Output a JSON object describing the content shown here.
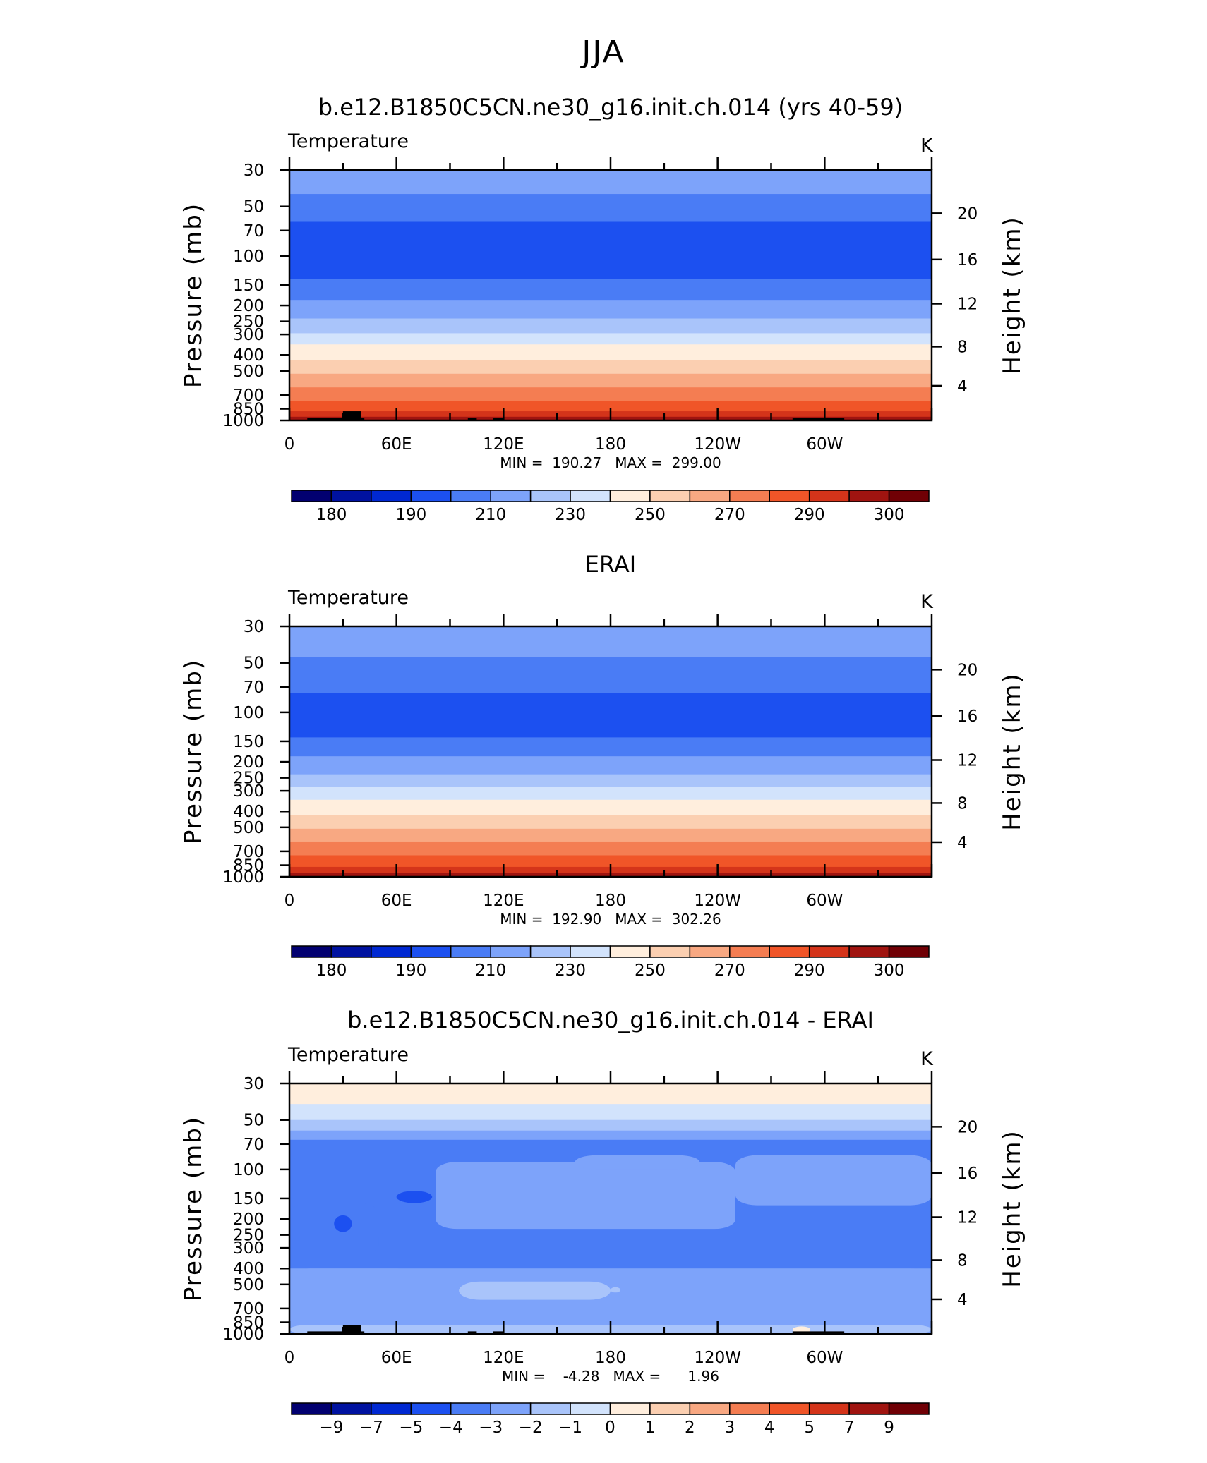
{
  "figure_title": "JJA",
  "chart_data": [
    {
      "type": "heatmap",
      "title": "b.e12.B1850C5CN.ne30_g16.init.ch.014 (yrs 40-59)",
      "left_label": "Temperature",
      "right_label": "K",
      "xlabel": "",
      "ylabel": "Pressure  (mb)",
      "ylabel_right": "Height  (km)",
      "x_ticks": [
        "0",
        "60E",
        "120E",
        "180",
        "120W",
        "60W"
      ],
      "y_ticks": [
        "30",
        "50",
        "70",
        "100",
        "150",
        "200",
        "250",
        "300",
        "400",
        "500",
        "700",
        "850",
        "1000"
      ],
      "y_right_ticks": [
        "20",
        "16",
        "12",
        "8",
        "4"
      ],
      "stats": "MIN =  190.27   MAX =  299.00",
      "levels": [
        175,
        180,
        185,
        190,
        200,
        210,
        220,
        230,
        240,
        250,
        260,
        270,
        280,
        290,
        295,
        300
      ],
      "colorbar_labels": [
        "180",
        "190",
        "210",
        "230",
        "250",
        "270",
        "290",
        "300"
      ],
      "bands": [
        {
          "top_p": 30,
          "bottom_p": 42,
          "value": 215
        },
        {
          "top_p": 42,
          "bottom_p": 62,
          "value": 205
        },
        {
          "top_p": 62,
          "bottom_p": 138,
          "value": 195
        },
        {
          "top_p": 138,
          "bottom_p": 185,
          "value": 205
        },
        {
          "top_p": 185,
          "bottom_p": 240,
          "value": 215
        },
        {
          "top_p": 240,
          "bottom_p": 295,
          "value": 225
        },
        {
          "top_p": 295,
          "bottom_p": 345,
          "value": 235
        },
        {
          "top_p": 345,
          "bottom_p": 430,
          "value": 245
        },
        {
          "top_p": 430,
          "bottom_p": 520,
          "value": 255
        },
        {
          "top_p": 520,
          "bottom_p": 630,
          "value": 265
        },
        {
          "top_p": 630,
          "bottom_p": 760,
          "value": 275
        },
        {
          "top_p": 760,
          "bottom_p": 880,
          "value": 285
        },
        {
          "top_p": 880,
          "bottom_p": 950,
          "value": 292
        },
        {
          "top_p": 950,
          "bottom_p": 1000,
          "value": 297
        }
      ],
      "terrain": [
        {
          "lon_start": 10,
          "lon_end": 30,
          "top_p": 965
        },
        {
          "lon_start": 30,
          "lon_end": 40,
          "top_p": 880
        },
        {
          "lon_start": 40,
          "lon_end": 42,
          "top_p": 965
        },
        {
          "lon_start": 100,
          "lon_end": 105,
          "top_p": 965
        },
        {
          "lon_start": 114,
          "lon_end": 120,
          "top_p": 965
        },
        {
          "lon_start": 282,
          "lon_end": 311,
          "top_p": 965
        }
      ]
    },
    {
      "type": "heatmap",
      "title": "ERAI",
      "left_label": "Temperature",
      "right_label": "K",
      "xlabel": "",
      "ylabel": "Pressure  (mb)",
      "ylabel_right": "Height  (km)",
      "x_ticks": [
        "0",
        "60E",
        "120E",
        "180",
        "120W",
        "60W"
      ],
      "y_ticks": [
        "30",
        "50",
        "70",
        "100",
        "150",
        "200",
        "250",
        "300",
        "400",
        "500",
        "700",
        "850",
        "1000"
      ],
      "y_right_ticks": [
        "20",
        "16",
        "12",
        "8",
        "4"
      ],
      "stats": "MIN =  192.90   MAX =  302.26",
      "levels": [
        175,
        180,
        185,
        190,
        200,
        210,
        220,
        230,
        240,
        250,
        260,
        270,
        280,
        290,
        295,
        300
      ],
      "colorbar_labels": [
        "180",
        "190",
        "210",
        "230",
        "250",
        "270",
        "290",
        "300"
      ],
      "bands": [
        {
          "top_p": 30,
          "bottom_p": 46,
          "value": 215
        },
        {
          "top_p": 46,
          "bottom_p": 76,
          "value": 205
        },
        {
          "top_p": 76,
          "bottom_p": 142,
          "value": 195
        },
        {
          "top_p": 142,
          "bottom_p": 185,
          "value": 205
        },
        {
          "top_p": 185,
          "bottom_p": 238,
          "value": 215
        },
        {
          "top_p": 238,
          "bottom_p": 285,
          "value": 225
        },
        {
          "top_p": 285,
          "bottom_p": 340,
          "value": 235
        },
        {
          "top_p": 340,
          "bottom_p": 420,
          "value": 245
        },
        {
          "top_p": 420,
          "bottom_p": 510,
          "value": 255
        },
        {
          "top_p": 510,
          "bottom_p": 610,
          "value": 265
        },
        {
          "top_p": 610,
          "bottom_p": 740,
          "value": 275
        },
        {
          "top_p": 740,
          "bottom_p": 870,
          "value": 285
        },
        {
          "top_p": 870,
          "bottom_p": 950,
          "value": 292
        },
        {
          "top_p": 950,
          "bottom_p": 1000,
          "value": 297
        }
      ],
      "terrain": []
    },
    {
      "type": "heatmap",
      "title": "b.e12.B1850C5CN.ne30_g16.init.ch.014 - ERAI",
      "left_label": "Temperature",
      "right_label": "K",
      "xlabel": "",
      "ylabel": "Pressure  (mb)",
      "ylabel_right": "Height  (km)",
      "x_ticks": [
        "0",
        "60E",
        "120E",
        "180",
        "120W",
        "60W"
      ],
      "y_ticks": [
        "30",
        "50",
        "70",
        "100",
        "150",
        "200",
        "250",
        "300",
        "400",
        "500",
        "700",
        "850",
        "1000"
      ],
      "y_right_ticks": [
        "20",
        "16",
        "12",
        "8",
        "4"
      ],
      "stats": "MIN =    -4.28   MAX =      1.96",
      "levels": [
        -11,
        -9,
        -7,
        -5,
        -4,
        -3,
        -2,
        -1,
        0,
        1,
        2,
        3,
        4,
        5,
        7,
        9
      ],
      "colorbar_labels": [
        "-9",
        "-7",
        "-5",
        "-4",
        "-3",
        "-2",
        "-1",
        "0",
        "1",
        "2",
        "3",
        "4",
        "5",
        "7",
        "9"
      ],
      "bands": [
        {
          "top_p": 30,
          "bottom_p": 40,
          "value": 0.5
        },
        {
          "top_p": 40,
          "bottom_p": 50,
          "value": -0.5
        },
        {
          "top_p": 50,
          "bottom_p": 58,
          "value": -1.5
        },
        {
          "top_p": 58,
          "bottom_p": 66,
          "value": -2.5
        },
        {
          "top_p": 66,
          "bottom_p": 160,
          "value": -3.5
        },
        {
          "top_p": 160,
          "bottom_p": 400,
          "value": -3.5
        },
        {
          "top_p": 400,
          "bottom_p": 1000,
          "value": -2.5
        }
      ],
      "blobs": [
        {
          "lon_start": 0,
          "lon_end": 82,
          "top_p": 82,
          "bottom_p": 160,
          "value": -3.5
        },
        {
          "lon_start": 82,
          "lon_end": 250,
          "top_p": 90,
          "bottom_p": 230,
          "value": -2.5
        },
        {
          "lon_start": 250,
          "lon_end": 360,
          "top_p": 82,
          "bottom_p": 165,
          "value": -2.5
        },
        {
          "lon_start": 160,
          "lon_end": 230,
          "top_p": 82,
          "bottom_p": 100,
          "value": -2.5
        },
        {
          "lon_start": 0,
          "lon_end": 50,
          "top_p": 160,
          "bottom_p": 330,
          "value": -3.5
        },
        {
          "lon_start": 50,
          "lon_end": 360,
          "top_p": 230,
          "bottom_p": 400,
          "value": -3.5
        },
        {
          "lon_start": 0,
          "lon_end": 360,
          "top_p": 400,
          "bottom_p": 1000,
          "value": -2.5
        },
        {
          "lon_start": 95,
          "lon_end": 180,
          "top_p": 480,
          "bottom_p": 620,
          "value": -1.5
        },
        {
          "lon_start": 180,
          "lon_end": 180,
          "top_p": 520,
          "bottom_p": 560,
          "value": -1.5
        },
        {
          "lon_start": 0,
          "lon_end": 360,
          "top_p": 880,
          "bottom_p": 1000,
          "value": -1.5
        },
        {
          "lon_start": 60,
          "lon_end": 80,
          "top_p": 135,
          "bottom_p": 160,
          "value": -4.5
        },
        {
          "lon_start": 25,
          "lon_end": 35,
          "top_p": 190,
          "bottom_p": 240,
          "value": -4.5
        },
        {
          "lon_start": 282,
          "lon_end": 292,
          "top_p": 900,
          "bottom_p": 990,
          "value": 0.5
        }
      ],
      "terrain": [
        {
          "lon_start": 10,
          "lon_end": 30,
          "top_p": 965
        },
        {
          "lon_start": 30,
          "lon_end": 40,
          "top_p": 880
        },
        {
          "lon_start": 40,
          "lon_end": 42,
          "top_p": 965
        },
        {
          "lon_start": 100,
          "lon_end": 105,
          "top_p": 965
        },
        {
          "lon_start": 114,
          "lon_end": 120,
          "top_p": 965
        },
        {
          "lon_start": 282,
          "lon_end": 311,
          "top_p": 965
        }
      ]
    }
  ],
  "colors": {
    "abs_palette": [
      "#020070",
      "#0012a0",
      "#0028d2",
      "#1c50f0",
      "#4a7cf5",
      "#7da3fa",
      "#a9c4fa",
      "#d2e3fc",
      "#ffeedd",
      "#fbcfb1",
      "#f8a882",
      "#f47d52",
      "#f05528",
      "#d4341a",
      "#a01410",
      "#700005"
    ],
    "diff_palette": [
      "#020070",
      "#0012a0",
      "#0028d2",
      "#1c50f0",
      "#4a7cf5",
      "#7da3fa",
      "#a9c4fa",
      "#d2e3fc",
      "#ffeedd",
      "#fbcfb1",
      "#f8a882",
      "#f47d52",
      "#f05528",
      "#d4341a",
      "#a01410",
      "#700005"
    ],
    "terrain": "#000000"
  }
}
